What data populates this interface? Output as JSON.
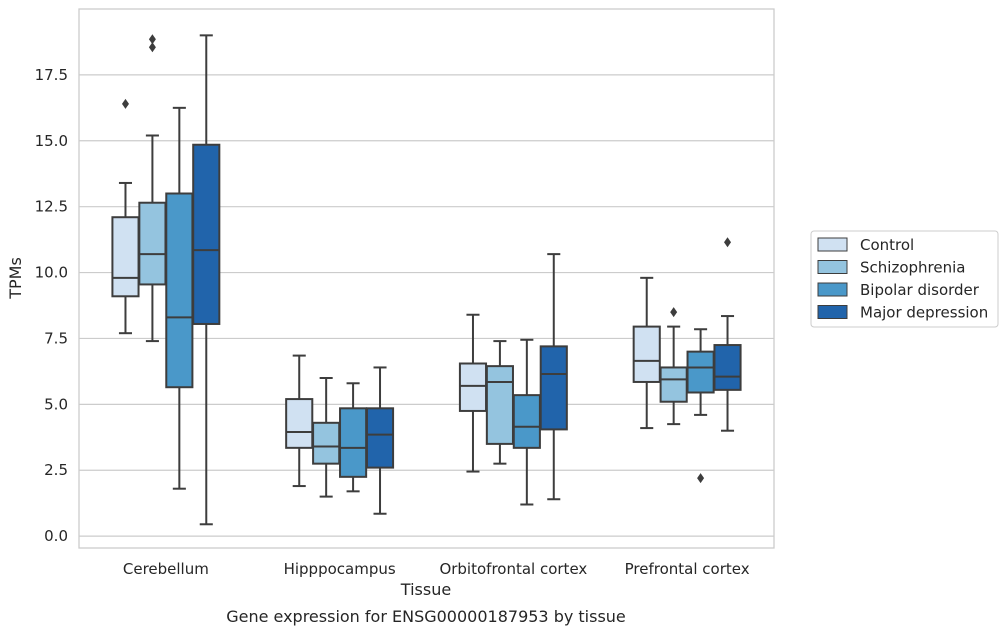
{
  "chart_data": {
    "type": "boxplot",
    "caption": "Gene expression for ENSG00000187953 by tissue",
    "xlabel": "Tissue",
    "ylabel": "TPMs",
    "ylim": [
      -0.45,
      20.0
    ],
    "yticks": [
      0.0,
      2.5,
      5.0,
      7.5,
      10.0,
      12.5,
      15.0,
      17.5
    ],
    "ytick_labels": [
      "0.0",
      "2.5",
      "5.0",
      "7.5",
      "10.0",
      "12.5",
      "15.0",
      "17.5"
    ],
    "grid": "horizontal",
    "legend_position": "right",
    "categories": [
      "Cerebellum",
      "Hipppocampus",
      "Orbitofrontal cortex",
      "Prefrontal cortex"
    ],
    "series": [
      {
        "name": "Control",
        "color": "#d0e1f2",
        "boxes": [
          {
            "whislo": 7.7,
            "q1": 9.1,
            "med": 9.8,
            "q3": 12.1,
            "whishi": 13.4,
            "fliers": [
              16.4
            ]
          },
          {
            "whislo": 1.9,
            "q1": 3.35,
            "med": 3.95,
            "q3": 5.2,
            "whishi": 6.85,
            "fliers": []
          },
          {
            "whislo": 2.45,
            "q1": 4.75,
            "med": 5.7,
            "q3": 6.55,
            "whishi": 8.4,
            "fliers": []
          },
          {
            "whislo": 4.1,
            "q1": 5.85,
            "med": 6.65,
            "q3": 7.95,
            "whishi": 9.8,
            "fliers": []
          }
        ]
      },
      {
        "name": "Schizophrenia",
        "color": "#94c4df",
        "boxes": [
          {
            "whislo": 7.4,
            "q1": 9.55,
            "med": 10.7,
            "q3": 12.65,
            "whishi": 15.2,
            "fliers": [
              18.55,
              18.85
            ]
          },
          {
            "whislo": 1.5,
            "q1": 2.75,
            "med": 3.4,
            "q3": 4.3,
            "whishi": 6.0,
            "fliers": []
          },
          {
            "whislo": 2.75,
            "q1": 3.5,
            "med": 5.85,
            "q3": 6.45,
            "whishi": 7.4,
            "fliers": []
          },
          {
            "whislo": 4.25,
            "q1": 5.1,
            "med": 5.95,
            "q3": 6.4,
            "whishi": 7.95,
            "fliers": [
              8.5
            ]
          }
        ]
      },
      {
        "name": "Bipolar disorder",
        "color": "#4a98c9",
        "boxes": [
          {
            "whislo": 1.8,
            "q1": 5.65,
            "med": 8.3,
            "q3": 13.0,
            "whishi": 16.25,
            "fliers": []
          },
          {
            "whislo": 1.7,
            "q1": 2.25,
            "med": 3.35,
            "q3": 4.85,
            "whishi": 5.8,
            "fliers": []
          },
          {
            "whislo": 1.2,
            "q1": 3.35,
            "med": 4.15,
            "q3": 5.35,
            "whishi": 7.45,
            "fliers": []
          },
          {
            "whislo": 4.6,
            "q1": 5.45,
            "med": 6.4,
            "q3": 7.0,
            "whishi": 7.85,
            "fliers": [
              2.2
            ]
          }
        ]
      },
      {
        "name": "Major depression",
        "color": "#2164ab",
        "boxes": [
          {
            "whislo": 0.45,
            "q1": 8.05,
            "med": 10.85,
            "q3": 14.85,
            "whishi": 19.0,
            "fliers": []
          },
          {
            "whislo": 0.85,
            "q1": 2.6,
            "med": 3.85,
            "q3": 4.85,
            "whishi": 6.4,
            "fliers": []
          },
          {
            "whislo": 1.4,
            "q1": 4.05,
            "med": 6.15,
            "q3": 7.2,
            "whishi": 10.7,
            "fliers": []
          },
          {
            "whislo": 4.0,
            "q1": 5.55,
            "med": 6.05,
            "q3": 7.25,
            "whishi": 8.35,
            "fliers": [
              11.15
            ]
          }
        ]
      }
    ]
  }
}
